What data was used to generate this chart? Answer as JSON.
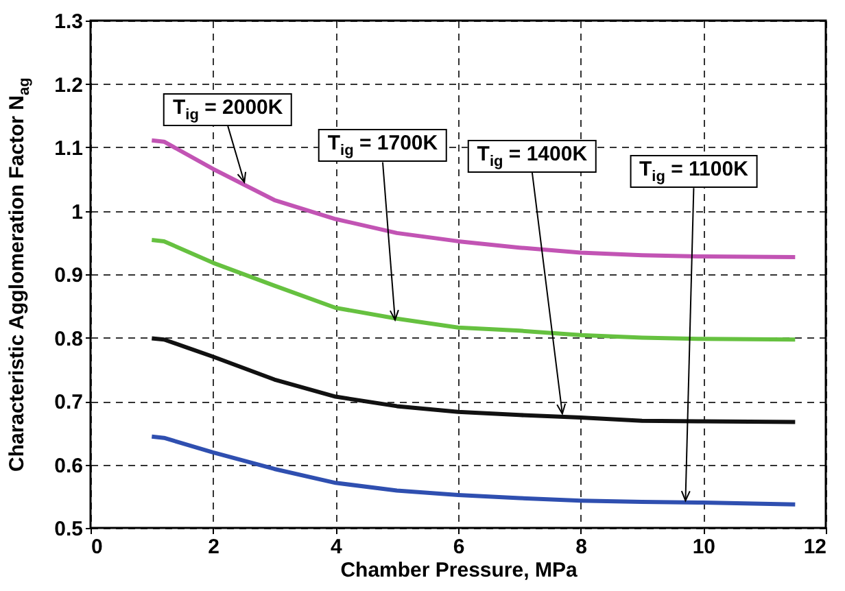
{
  "chart_data": {
    "type": "line",
    "xlabel": "Chamber Pressure, MPa",
    "ylabel": "Characteristic Agglomeration Factor N$_{ag}$",
    "xlim": [
      0,
      12
    ],
    "xticks": [
      0,
      2,
      4,
      6,
      8,
      10,
      12
    ],
    "ylim": [
      0.5,
      1.3
    ],
    "yticks": [
      0.5,
      0.6,
      0.7,
      0.8,
      0.9,
      1,
      1.1,
      1.2,
      1.3
    ],
    "grid": true,
    "line_style": "solid",
    "marker": "none",
    "x": [
      1,
      1.2,
      2,
      3,
      4,
      5,
      6,
      7,
      8,
      9,
      10,
      11.5
    ],
    "series": [
      {
        "color": "#c254b4",
        "values": [
          1.111,
          1.109,
          1.066,
          1.017,
          0.987,
          0.965,
          0.952,
          0.942,
          0.934,
          0.93,
          0.928,
          0.927
        ]
      },
      {
        "color": "#66c140",
        "values": [
          0.954,
          0.952,
          0.918,
          0.882,
          0.847,
          0.83,
          0.816,
          0.811,
          0.804,
          0.8,
          0.798,
          0.797
        ]
      },
      {
        "color": "#111111",
        "values": [
          0.799,
          0.797,
          0.77,
          0.734,
          0.707,
          0.692,
          0.683,
          0.678,
          0.674,
          0.669,
          0.668,
          0.667
        ]
      },
      {
        "color": "#2f4fb0",
        "values": [
          0.644,
          0.642,
          0.619,
          0.593,
          0.571,
          0.559,
          0.552,
          0.547,
          0.543,
          0.541,
          0.54,
          0.537
        ]
      }
    ],
    "annotations": [
      {
        "text": "T$_{ig}$ = 2000K",
        "x": 2.51,
        "y": 1.045
      },
      {
        "text": "T$_{ig}$ = 1700K",
        "x": 4.97,
        "y": 0.828
      },
      {
        "text": "T$_{ig}$ = 1400K",
        "x": 7.7,
        "y": 0.68
      },
      {
        "text": "T$_{ig}$ = 1100K",
        "x": 9.71,
        "y": 0.543
      }
    ]
  }
}
